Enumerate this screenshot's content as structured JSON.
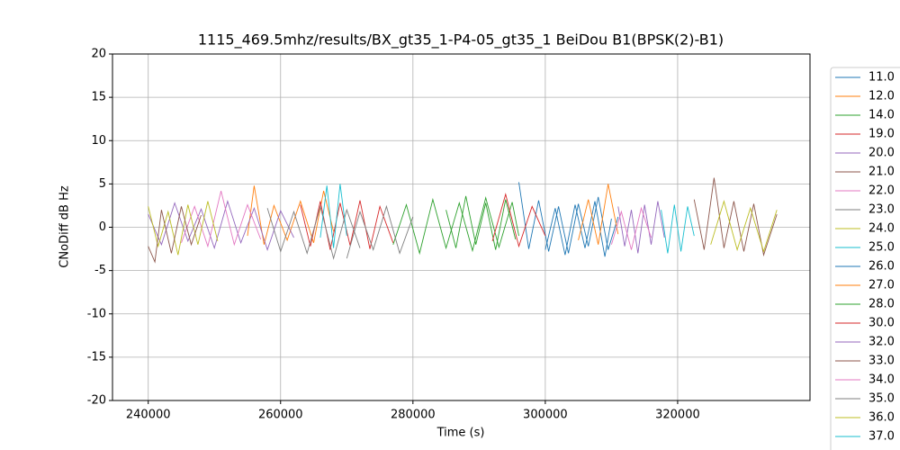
{
  "chart_data": {
    "type": "line",
    "title": "1115_469.5mhz/results/BX_gt35_1-P4-05_gt35_1 BeiDou B1(BPSK(2)-B1)",
    "xlabel": "Time (s)",
    "ylabel": "CNoDiff dB Hz",
    "xlim": [
      234600,
      340000
    ],
    "ylim": [
      -20,
      20
    ],
    "xticks": [
      240000,
      260000,
      280000,
      300000,
      320000
    ],
    "yticks": [
      -20,
      -15,
      -10,
      -5,
      0,
      5,
      10,
      15,
      20
    ],
    "grid": true,
    "legend": "outside-right",
    "series": [
      {
        "name": "11.0",
        "color": "#1f77b4",
        "x": [
          296000,
          297500,
          299000,
          300500,
          302000,
          303500,
          305000,
          306500,
          308000,
          309500,
          311000
        ],
        "values": [
          5.2,
          -2.5,
          3.1,
          -2.8,
          2.4,
          -3.0,
          2.7,
          -2.2,
          3.5,
          -2.6,
          1.2
        ]
      },
      {
        "name": "12.0",
        "color": "#ff7f0e",
        "x": [
          255000,
          256000,
          257500,
          259000,
          261000,
          263000,
          265000,
          266500,
          268000
        ],
        "values": [
          -1.0,
          4.8,
          -2.0,
          2.5,
          -1.5,
          3.0,
          -1.8,
          4.2,
          -0.5
        ]
      },
      {
        "name": "14.0",
        "color": "#2ca02c",
        "x": [
          277000,
          279000,
          281000,
          283000,
          285000,
          287000,
          289000,
          291000,
          293000,
          295000,
          296000
        ],
        "values": [
          -2.0,
          2.6,
          -3.0,
          3.2,
          -2.4,
          2.8,
          -2.7,
          3.4,
          -2.3,
          2.9,
          -1.0
        ]
      },
      {
        "name": "19.0",
        "color": "#d62728",
        "x": [
          263000,
          264500,
          266000,
          267500,
          269000,
          270500,
          272000,
          273500,
          275000,
          277000
        ],
        "values": [
          2.6,
          -2.2,
          3.0,
          -2.6,
          2.8,
          -2.1,
          3.1,
          -2.5,
          2.4,
          -1.8
        ]
      },
      {
        "name": "20.0",
        "color": "#9467bd",
        "x": [
          240000,
          242000,
          244000,
          246000,
          248000,
          250000,
          252000,
          254000,
          256000,
          258000,
          260000,
          262000
        ],
        "values": [
          1.5,
          -2.0,
          2.8,
          -1.6,
          2.1,
          -2.4,
          3.0,
          -1.8,
          2.2,
          -2.6,
          1.9,
          -1.2
        ]
      },
      {
        "name": "21.0",
        "color": "#8c564b",
        "x": [
          322500,
          324000,
          325500,
          327000,
          328500,
          330000,
          331500,
          333000,
          335000
        ],
        "values": [
          3.2,
          -2.6,
          5.7,
          -2.4,
          3.0,
          -2.8,
          2.7,
          -3.2,
          1.5
        ]
      },
      {
        "name": "22.0",
        "color": "#e377c2",
        "x": [
          245000,
          247000,
          249000,
          251000,
          253000,
          255000,
          257000
        ],
        "values": [
          -1.8,
          2.4,
          -2.2,
          4.2,
          -2.0,
          2.6,
          -1.4
        ]
      },
      {
        "name": "23.0",
        "color": "#7f7f7f",
        "x": [
          258000,
          260000,
          262000,
          264000,
          266000,
          268000,
          270000,
          272000
        ],
        "values": [
          2.2,
          -2.8,
          1.8,
          -3.0,
          2.4,
          -3.6,
          2.0,
          -2.4
        ]
      },
      {
        "name": "24.0",
        "color": "#bcbd22",
        "x": [
          240000,
          241500,
          243000,
          244500,
          246000,
          247500,
          249000,
          250500
        ],
        "values": [
          2.4,
          -2.2,
          1.8,
          -3.2,
          2.6,
          -2.0,
          3.0,
          -1.6
        ]
      },
      {
        "name": "25.0",
        "color": "#17becf",
        "x": [
          266000,
          267000,
          268000,
          269000,
          270000
        ],
        "values": [
          -1.2,
          4.8,
          -2.4,
          5.0,
          -1.0
        ]
      },
      {
        "name": "26.0",
        "color": "#1f77b4",
        "x": [
          300000,
          301500,
          303000,
          304500,
          306000,
          307500,
          309000,
          310000
        ],
        "values": [
          -2.6,
          2.2,
          -3.2,
          2.6,
          -2.4,
          3.0,
          -3.4,
          1.0
        ]
      },
      {
        "name": "27.0",
        "color": "#ff7f0e",
        "x": [
          305000,
          306500,
          308000,
          309500,
          311000
        ],
        "values": [
          -1.5,
          3.2,
          -2.0,
          5.0,
          -0.8
        ]
      },
      {
        "name": "28.0",
        "color": "#2ca02c",
        "x": [
          285000,
          286500,
          288000,
          289500,
          291000,
          292500,
          294000,
          295500
        ],
        "values": [
          2.0,
          -2.4,
          3.6,
          -2.0,
          2.8,
          -2.6,
          3.2,
          -1.4
        ]
      },
      {
        "name": "30.0",
        "color": "#d62728",
        "x": [
          292000,
          294000,
          296000,
          298000,
          300000
        ],
        "values": [
          -1.6,
          3.8,
          -2.2,
          2.4,
          -1.0
        ]
      },
      {
        "name": "32.0",
        "color": "#9467bd",
        "x": [
          311000,
          312000,
          313000,
          314000,
          315000,
          316000,
          317000,
          318000
        ],
        "values": [
          2.4,
          -2.2,
          2.0,
          -3.0,
          2.6,
          -2.0,
          3.0,
          -1.2
        ]
      },
      {
        "name": "33.0",
        "color": "#8c564b",
        "x": [
          240000,
          241000,
          242000,
          243500,
          245000,
          246500,
          248000
        ],
        "values": [
          -2.2,
          -4.0,
          2.0,
          -3.0,
          2.4,
          -2.0,
          1.4
        ]
      },
      {
        "name": "34.0",
        "color": "#e377c2",
        "x": [
          310000,
          311500,
          313000,
          314500,
          316000
        ],
        "values": [
          -2.0,
          1.8,
          -2.6,
          2.2,
          -1.2
        ]
      },
      {
        "name": "35.0",
        "color": "#7f7f7f",
        "x": [
          270000,
          272000,
          274000,
          276000,
          278000,
          280000
        ],
        "values": [
          -3.6,
          1.8,
          -2.6,
          2.4,
          -3.0,
          1.2
        ]
      },
      {
        "name": "36.0",
        "color": "#bcbd22",
        "x": [
          325000,
          327000,
          329000,
          331000,
          333000,
          335000
        ],
        "values": [
          -2.0,
          3.0,
          -2.6,
          2.2,
          -2.8,
          2.0
        ]
      },
      {
        "name": "37.0",
        "color": "#17becf",
        "x": [
          317500,
          318500,
          319500,
          320500,
          321500,
          322500
        ],
        "values": [
          2.0,
          -3.0,
          2.6,
          -2.8,
          2.4,
          -1.0
        ]
      }
    ]
  }
}
